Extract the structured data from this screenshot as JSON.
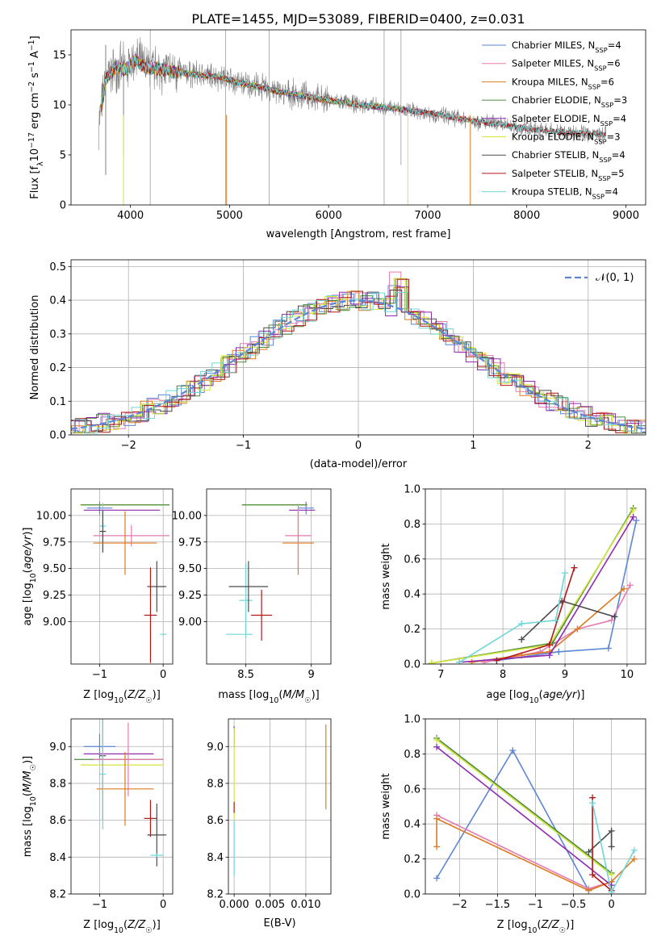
{
  "figure_title": "PLATE=1455, MJD=53089, FIBERID=0400, z=0.031",
  "colors": {
    "Chabrier MILES": "#5b86d6",
    "Salpeter MILES": "#e67ab0",
    "Kroupa MILES": "#e07a1f",
    "Chabrier ELODIE": "#4b8a3e",
    "Salpeter ELODIE": "#8e2ab0",
    "Kroupa ELODIE": "#d6e639",
    "Chabrier STELIB": "#4a4a4a",
    "Salpeter STELIB": "#b01717",
    "Kroupa STELIB": "#6fd6d6",
    "data": "#808080",
    "normal": "#5b86d6"
  },
  "chart_data": [
    {
      "id": "spectrum",
      "type": "line",
      "title": "PLATE=1455, MJD=53089, FIBERID=0400, z=0.031",
      "xlabel": "wavelength [Angstrom, rest frame]",
      "ylabel": "Flux [f_λ 10^-17 erg cm^-2 s^-1 A^-1]",
      "xlim": [
        3400,
        9200
      ],
      "ylim": [
        0,
        17.5
      ],
      "xticks": [
        4000,
        5000,
        6000,
        7000,
        8000,
        9000
      ],
      "yticks": [
        0,
        5,
        10,
        15
      ],
      "legend_position": "top-right",
      "legend": [
        {
          "name": "Chabrier MILES",
          "nssp": "4"
        },
        {
          "name": "Salpeter MILES",
          "nssp": "6"
        },
        {
          "name": "Kroupa MILES",
          "nssp": "6"
        },
        {
          "name": "Chabrier ELODIE",
          "nssp": "3"
        },
        {
          "name": "Salpeter ELODIE",
          "nssp": "4"
        },
        {
          "name": "Kroupa ELODIE",
          "nssp": "3"
        },
        {
          "name": "Chabrier STELIB",
          "nssp": "4"
        },
        {
          "name": "Salpeter STELIB",
          "nssp": "5"
        },
        {
          "name": "Kroupa STELIB",
          "nssp": "4"
        }
      ],
      "continuum": {
        "x": [
          3680,
          3750,
          3850,
          3950,
          4050,
          4150,
          4300,
          4500,
          4700,
          4900,
          5100,
          5300,
          5500,
          5800,
          6100,
          6400,
          6700,
          7000,
          7300,
          7600,
          7900,
          8200,
          8500,
          8800
        ],
        "y": [
          8.2,
          12.5,
          13.8,
          13.5,
          14.5,
          13.8,
          13.5,
          13.2,
          13.0,
          12.8,
          12.2,
          11.8,
          11.3,
          10.8,
          10.3,
          9.9,
          9.6,
          9.2,
          8.7,
          8.2,
          7.8,
          7.4,
          7.2,
          7.0
        ]
      }
    },
    {
      "id": "residuals",
      "type": "line",
      "xlabel": "(data-model)/error",
      "ylabel": "Normed distribution",
      "xlim": [
        -2.5,
        2.5
      ],
      "ylim": [
        0,
        0.52
      ],
      "xticks": [
        -2,
        -1,
        0,
        1,
        2
      ],
      "yticks": [
        0.0,
        0.1,
        0.2,
        0.3,
        0.4,
        0.5
      ],
      "legend_position": "top-right",
      "series": [
        {
          "name": "𝒩(0, 1)",
          "mean": 0,
          "sigma": 1
        }
      ]
    },
    {
      "id": "age-z",
      "type": "scatter",
      "xlabel": "Z [log10(Z/Z☉)]",
      "ylabel": "age  [log10(age/yr)]",
      "xlim": [
        -1.45,
        0.15
      ],
      "ylim": [
        8.6,
        10.25
      ],
      "xticks": [
        -1,
        0
      ],
      "yticks": [
        9.0,
        9.25,
        9.5,
        9.75,
        10.0
      ],
      "points": [
        {
          "model": "Kroupa ELODIE",
          "x": -0.6,
          "xerr": 0.7,
          "y": 10.1,
          "yerr": 0.0
        },
        {
          "model": "Chabrier ELODIE",
          "x": -0.6,
          "xerr": 0.7,
          "y": 10.1,
          "yerr": 0.0
        },
        {
          "model": "Chabrier MILES",
          "x": -1.0,
          "xerr": 0.2,
          "y": 10.07,
          "yerr": 0.06
        },
        {
          "model": "Salpeter ELODIE",
          "x": -0.65,
          "xerr": 0.6,
          "y": 10.05,
          "yerr": 0.0
        },
        {
          "model": "Kroupa STELIB",
          "x": -0.95,
          "xerr": 0.05,
          "y": 9.9,
          "yerr": 0.22
        },
        {
          "model": "Salpeter MILES",
          "x": -0.5,
          "xerr": 0.6,
          "y": 9.81,
          "yerr": 0.1
        },
        {
          "model": "Chabrier STELIB",
          "x": -0.95,
          "xerr": 0.05,
          "y": 9.85,
          "yerr": 0.2
        },
        {
          "model": "Kroupa MILES",
          "x": -0.6,
          "xerr": 0.5,
          "y": 9.74,
          "yerr": 0.3
        },
        {
          "model": "Chabrier STELIB",
          "x": -0.1,
          "xerr": 0.15,
          "y": 9.33,
          "yerr": 0.24
        },
        {
          "model": "Salpeter STELIB",
          "x": -0.2,
          "xerr": 0.1,
          "y": 9.06,
          "yerr": 0.45
        },
        {
          "model": "Kroupa STELIB",
          "x": 0.0,
          "xerr": 0.05,
          "y": 8.88,
          "yerr": 0.0
        }
      ]
    },
    {
      "id": "age-mass",
      "type": "scatter",
      "xlabel": "mass [log10(M/M☉)]",
      "ylabel": "",
      "xlim": [
        8.2,
        9.15
      ],
      "ylim": [
        8.6,
        10.25
      ],
      "xticks": [
        8.5,
        9.0
      ],
      "yticks": [
        9.0,
        9.25,
        9.5,
        9.75,
        10.0
      ],
      "points": [
        {
          "model": "Kroupa ELODIE",
          "x": 8.72,
          "xerr": 0.25,
          "y": 10.1,
          "yerr": 0.0
        },
        {
          "model": "Chabrier ELODIE",
          "x": 8.72,
          "xerr": 0.25,
          "y": 10.1,
          "yerr": 0.0
        },
        {
          "model": "Chabrier MILES",
          "x": 8.96,
          "xerr": 0.06,
          "y": 10.07,
          "yerr": 0.06
        },
        {
          "model": "Salpeter ELODIE",
          "x": 8.93,
          "xerr": 0.1,
          "y": 10.05,
          "yerr": 0.0
        },
        {
          "model": "Kroupa MILES",
          "x": 8.9,
          "xerr": 0.12,
          "y": 9.74,
          "yerr": 0.3
        },
        {
          "model": "Salpeter MILES",
          "x": 8.9,
          "xerr": 0.1,
          "y": 9.81,
          "yerr": 0.3
        },
        {
          "model": "Kroupa STELIB",
          "x": 8.5,
          "xerr": 0.05,
          "y": 9.2,
          "yerr": 0.35
        },
        {
          "model": "Chabrier STELIB",
          "x": 8.52,
          "xerr": 0.15,
          "y": 9.33,
          "yerr": 0.24
        },
        {
          "model": "Salpeter STELIB",
          "x": 8.62,
          "xerr": 0.08,
          "y": 9.06,
          "yerr": 0.24
        },
        {
          "model": "Kroupa STELIB",
          "x": 8.45,
          "xerr": 0.1,
          "y": 8.88,
          "yerr": 0.0
        }
      ]
    },
    {
      "id": "massweight-age",
      "type": "line",
      "xlabel": "age  [log10(age/yr)]",
      "ylabel": "mass weight",
      "xlim": [
        6.75,
        10.3
      ],
      "ylim": [
        0,
        1.0
      ],
      "xticks": [
        7,
        8,
        9,
        10
      ],
      "yticks": [
        0.0,
        0.2,
        0.4,
        0.6,
        0.8,
        1.0
      ],
      "series": [
        {
          "model": "Chabrier MILES",
          "x": [
            7.9,
            8.9,
            9.7,
            10.15
          ],
          "y": [
            0.02,
            0.07,
            0.09,
            0.82
          ]
        },
        {
          "model": "Salpeter MILES",
          "x": [
            7.7,
            8.6,
            9.2,
            9.75,
            10.05
          ],
          "y": [
            0.01,
            0.07,
            0.2,
            0.25,
            0.45
          ]
        },
        {
          "model": "Kroupa MILES",
          "x": [
            7.5,
            8.3,
            8.75,
            9.2,
            9.95
          ],
          "y": [
            0.01,
            0.05,
            0.07,
            0.2,
            0.43
          ]
        },
        {
          "model": "Chabrier ELODIE",
          "x": [
            6.85,
            8.8,
            10.1
          ],
          "y": [
            0.005,
            0.12,
            0.89
          ]
        },
        {
          "model": "Salpeter ELODIE",
          "x": [
            7.3,
            8.75,
            10.1
          ],
          "y": [
            0.01,
            0.05,
            0.84
          ]
        },
        {
          "model": "Kroupa ELODIE",
          "x": [
            6.85,
            8.75,
            10.1
          ],
          "y": [
            0.005,
            0.11,
            0.88
          ]
        },
        {
          "model": "Chabrier STELIB",
          "x": [
            8.3,
            8.95,
            9.8
          ],
          "y": [
            0.14,
            0.36,
            0.27
          ]
        },
        {
          "model": "Salpeter STELIB",
          "x": [
            7.9,
            8.75,
            9.15
          ],
          "y": [
            0.02,
            0.11,
            0.55
          ]
        },
        {
          "model": "Kroupa STELIB",
          "x": [
            7.3,
            8.3,
            8.85,
            9.0
          ],
          "y": [
            0.01,
            0.23,
            0.25,
            0.52
          ]
        }
      ]
    },
    {
      "id": "mass-z",
      "type": "scatter",
      "xlabel": "Z [log10(Z/Z☉)]",
      "ylabel": "mass [log10(M/M☉)]",
      "xlim": [
        -1.45,
        0.15
      ],
      "ylim": [
        8.2,
        9.15
      ],
      "xticks": [
        -1,
        0
      ],
      "yticks": [
        8.2,
        8.4,
        8.6,
        8.8,
        9.0
      ],
      "points": [
        {
          "model": "Chabrier ELODIE",
          "x": -0.7,
          "xerr": 0.7,
          "y": 8.93,
          "yerr": 0.0
        },
        {
          "model": "Salpeter ELODIE",
          "x": -0.7,
          "xerr": 0.55,
          "y": 8.96,
          "yerr": 0.0
        },
        {
          "model": "Chabrier MILES",
          "x": -1.0,
          "xerr": 0.25,
          "y": 9.0,
          "yerr": 0.07
        },
        {
          "model": "Salpeter MILES",
          "x": -0.55,
          "xerr": 0.55,
          "y": 8.93,
          "yerr": 0.2
        },
        {
          "model": "Kroupa ELODIE",
          "x": -0.65,
          "xerr": 0.65,
          "y": 8.9,
          "yerr": 0.0
        },
        {
          "model": "Kroupa MILES",
          "x": -0.6,
          "xerr": 0.45,
          "y": 8.77,
          "yerr": 0.2
        },
        {
          "model": "Chabrier STELIB",
          "x": -0.95,
          "xerr": 0.05,
          "y": 8.95,
          "yerr": 0.35
        },
        {
          "model": "Kroupa STELIB",
          "x": -0.95,
          "xerr": 0.05,
          "y": 8.85,
          "yerr": 0.3
        },
        {
          "model": "Salpeter STELIB",
          "x": -0.2,
          "xerr": 0.1,
          "y": 8.61,
          "yerr": 0.1
        },
        {
          "model": "Chabrier STELIB",
          "x": -0.1,
          "xerr": 0.15,
          "y": 8.52,
          "yerr": 0.17
        },
        {
          "model": "Kroupa STELIB",
          "x": -0.1,
          "xerr": 0.1,
          "y": 8.41,
          "yerr": 0.01
        }
      ]
    },
    {
      "id": "mass-ebv",
      "type": "scatter",
      "xlabel": "E(B-V)",
      "ylabel": "",
      "xlim": [
        -0.0008,
        0.0135
      ],
      "ylim": [
        8.2,
        9.15
      ],
      "xticks": [
        0.0,
        0.005,
        0.01
      ],
      "xticklabels": [
        "0.000",
        "0.005",
        "0.010"
      ],
      "yticks": [
        8.2,
        8.4,
        8.6,
        8.8,
        9.0
      ],
      "points": [
        {
          "model": "Salpeter ELODIE",
          "x": 0.0,
          "y": 9.05,
          "yerr": 0.06
        },
        {
          "model": "Kroupa ELODIE",
          "x": 0.0,
          "y": 8.85,
          "yerr": 0.25
        },
        {
          "model": "Salpeter STELIB",
          "x": 0.0,
          "y": 8.67,
          "yerr": 0.03
        },
        {
          "model": "Kroupa STELIB",
          "x": 0.0,
          "y": 8.45,
          "yerr": 0.15
        },
        {
          "model": "Kroupa MILES",
          "x": 0.0128,
          "y": 8.89,
          "yerr": 0.23
        }
      ]
    },
    {
      "id": "massweight-z",
      "type": "line",
      "xlabel": "Z [log10(Z/Z☉)]",
      "ylabel": "mass weight",
      "xlim": [
        -2.45,
        0.45
      ],
      "ylim": [
        0,
        1.0
      ],
      "xticks": [
        -2.0,
        -1.5,
        -1.0,
        -0.5,
        0.0
      ],
      "yticks": [
        0.0,
        0.2,
        0.4,
        0.6,
        0.8,
        1.0
      ],
      "series": [
        {
          "model": "Chabrier MILES",
          "x": [
            -2.3,
            -1.3,
            -0.3,
            0.0
          ],
          "y": [
            0.09,
            0.82,
            0.02,
            0.07
          ]
        },
        {
          "model": "Salpeter MILES",
          "x": [
            -2.3,
            -0.3,
            0.0
          ],
          "y": [
            0.45,
            0.03,
            0.07
          ]
        },
        {
          "model": "Kroupa MILES",
          "x": [
            -2.3,
            -2.3,
            -0.3,
            0.0,
            0.3
          ],
          "y": [
            0.27,
            0.43,
            0.02,
            0.07,
            0.2
          ]
        },
        {
          "model": "Chabrier ELODIE",
          "x": [
            -2.3,
            0.0
          ],
          "y": [
            0.89,
            0.12
          ]
        },
        {
          "model": "Salpeter ELODIE",
          "x": [
            -2.3,
            0.0
          ],
          "y": [
            0.84,
            0.05
          ]
        },
        {
          "model": "Kroupa ELODIE",
          "x": [
            -2.3,
            0.0
          ],
          "y": [
            0.88,
            0.11
          ]
        },
        {
          "model": "Chabrier STELIB",
          "x": [
            -0.3,
            0.0,
            0.0
          ],
          "y": [
            0.24,
            0.36,
            0.27
          ]
        },
        {
          "model": "Salpeter STELIB",
          "x": [
            -0.25,
            -0.25,
            0.0
          ],
          "y": [
            0.55,
            0.11,
            0.02
          ]
        },
        {
          "model": "Kroupa STELIB",
          "x": [
            -0.25,
            0.0,
            0.3
          ],
          "y": [
            0.52,
            0.01,
            0.25
          ]
        }
      ]
    }
  ]
}
